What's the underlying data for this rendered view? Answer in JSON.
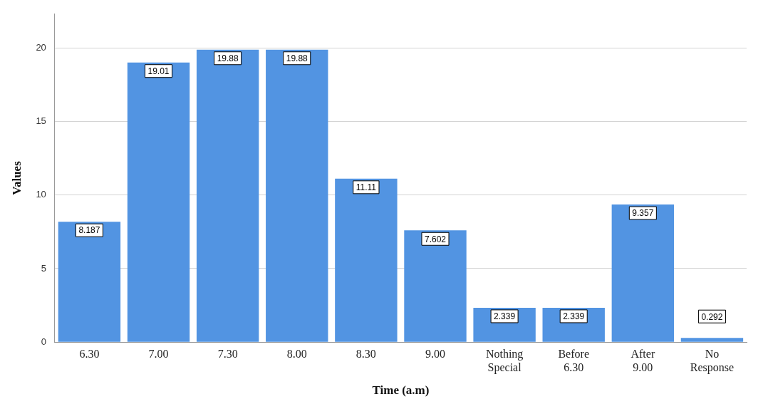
{
  "chart_data": {
    "type": "bar",
    "xlabel": "Time (a.m)",
    "ylabel": "Values",
    "categories": [
      "6.30",
      "7.00",
      "7.30",
      "8.00",
      "8.30",
      "9.00",
      "Nothing Special",
      "Before 6.30",
      "After 9.00",
      "No Response"
    ],
    "values": [
      8.187,
      19.01,
      19.88,
      19.88,
      11.11,
      7.602,
      2.339,
      2.339,
      9.357,
      0.292
    ],
    "color": "#5294e2",
    "ylim": [
      0,
      22.3
    ],
    "yticks": [
      0,
      5,
      10,
      15,
      20
    ],
    "grid": "y",
    "data_labels": true
  }
}
